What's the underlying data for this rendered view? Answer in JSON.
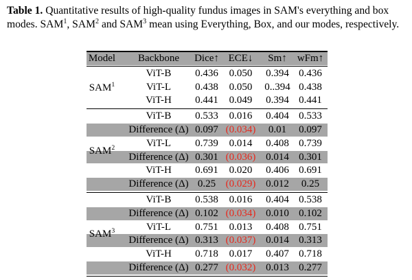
{
  "caption": {
    "label": "Table 1.",
    "text_1": " Quantitative results of high-quality fundus images in SAM's everything and box modes. SAM",
    "sup_1": "1",
    "text_2": ", SAM",
    "sup_2": "2",
    "text_3": " and SAM",
    "sup_3": "3",
    "text_4": " mean using Everything, Box, and our modes, respectively."
  },
  "table": {
    "headers": [
      "Model",
      "Backbone",
      "Dice↑",
      "ECE↓",
      "Sm↑",
      "wFm↑"
    ],
    "groups": [
      {
        "model": "SAM",
        "sup": "1",
        "rows": [
          {
            "backbone": "ViT-B",
            "dice": "0.436",
            "ece": "0.050",
            "sm": "0.394",
            "wfm": "0.436"
          },
          {
            "backbone": "ViT-L",
            "dice": "0.438",
            "ece": "0.050",
            "sm": "0..394",
            "wfm": "0.438"
          },
          {
            "backbone": "ViT-H",
            "dice": "0.441",
            "ece": "0.049",
            "sm": "0.394",
            "wfm": "0.441"
          }
        ]
      },
      {
        "model": "SAM",
        "sup": "2",
        "rows": [
          {
            "backbone": "ViT-B",
            "dice": "0.533",
            "ece": "0.016",
            "sm": "0.404",
            "wfm": "0.533"
          },
          {
            "backbone": "Difference (Δ)",
            "dice": "0.097",
            "ece": "(0.034)",
            "sm": "0.01",
            "wfm": "0.097",
            "diff": true
          },
          {
            "backbone": "ViT-L",
            "dice": "0.739",
            "ece": "0.014",
            "sm": "0.408",
            "wfm": "0.739"
          },
          {
            "backbone": "Difference (Δ)",
            "dice": "0.301",
            "ece": "(0.036)",
            "sm": "0.014",
            "wfm": "0.301",
            "diff": true
          },
          {
            "backbone": "ViT-H",
            "dice": "0.691",
            "ece": "0.020",
            "sm": "0.406",
            "wfm": "0.691"
          },
          {
            "backbone": "Difference (Δ)",
            "dice": "0.25",
            "ece": "(0.029)",
            "sm": "0.012",
            "wfm": "0.25",
            "diff": true
          }
        ]
      },
      {
        "model": "SAM",
        "sup": "3",
        "rows": [
          {
            "backbone": "ViT-B",
            "dice": "0.538",
            "ece": "0.016",
            "sm": "0.404",
            "wfm": "0.538"
          },
          {
            "backbone": "Difference (Δ)",
            "dice": "0.102",
            "ece": "(0.034)",
            "sm": "0.010",
            "wfm": "0.102",
            "diff": true
          },
          {
            "backbone": "ViT-L",
            "dice": "0.751",
            "ece": "0.013",
            "sm": "0.408",
            "wfm": "0.751"
          },
          {
            "backbone": "Difference (Δ)",
            "dice": "0.313",
            "ece": "(0.037)",
            "sm": "0.014",
            "wfm": "0.313",
            "diff": true
          },
          {
            "backbone": "ViT-H",
            "dice": "0.718",
            "ece": "0.017",
            "sm": "0.407",
            "wfm": "0.718"
          },
          {
            "backbone": "Difference (Δ)",
            "dice": "0.277",
            "ece": "(0.032)",
            "sm": "0.013",
            "wfm": "0.277",
            "diff": true
          }
        ]
      }
    ],
    "colors": {
      "diff_row_bg": "#a6a6a6",
      "negative_value": "#e8281c"
    }
  }
}
